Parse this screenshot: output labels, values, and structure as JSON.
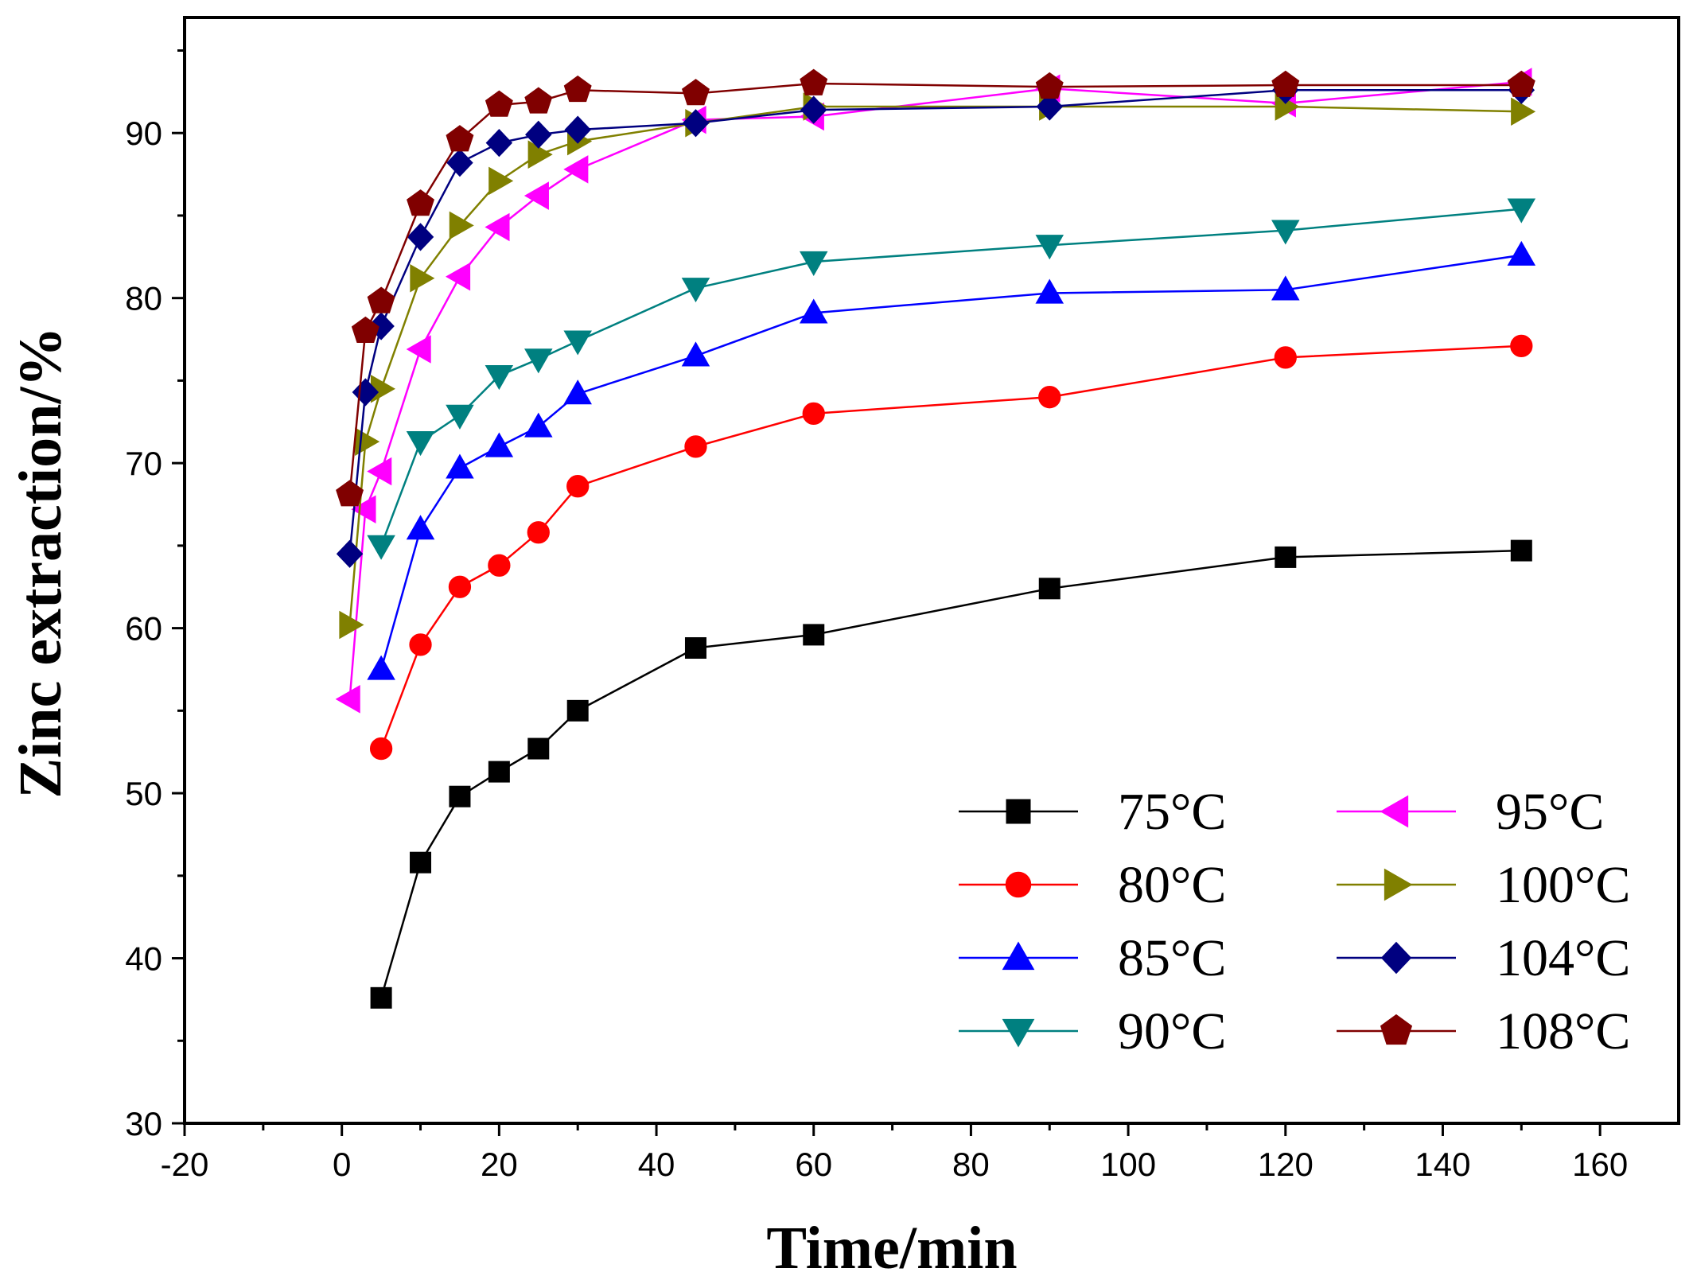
{
  "chart_data": {
    "type": "line",
    "title": "",
    "xlabel": "Time/min",
    "ylabel": "Zinc extraction/%",
    "xlim": [
      -20,
      170
    ],
    "ylim": [
      30,
      97
    ],
    "xticks": [
      -20,
      0,
      20,
      40,
      60,
      80,
      100,
      120,
      140,
      160
    ],
    "yticks": [
      30,
      40,
      50,
      60,
      70,
      80,
      90
    ],
    "xtick_labels": [
      "-20",
      "0",
      "20",
      "40",
      "60",
      "80",
      "100",
      "120",
      "140",
      "160"
    ],
    "ytick_labels": [
      "30",
      "40",
      "50",
      "60",
      "70",
      "80",
      "90"
    ],
    "grid": false,
    "legend_position": "bottom-right",
    "series": [
      {
        "name": "75°C",
        "color": "#000000",
        "marker": "square",
        "x": [
          5,
          10,
          15,
          20,
          25,
          30,
          45,
          60,
          90,
          120,
          150
        ],
        "y": [
          37.6,
          45.8,
          49.8,
          51.3,
          52.7,
          55.0,
          58.8,
          59.6,
          62.4,
          64.3,
          64.7
        ]
      },
      {
        "name": "80°C",
        "color": "#ff0000",
        "marker": "circle",
        "x": [
          5,
          10,
          15,
          20,
          25,
          30,
          45,
          60,
          90,
          120,
          150
        ],
        "y": [
          52.7,
          59.0,
          62.5,
          63.8,
          65.8,
          68.6,
          71.0,
          73.0,
          74.0,
          76.4,
          77.1
        ]
      },
      {
        "name": "85°C",
        "color": "#0000ff",
        "marker": "triangle-up",
        "x": [
          5,
          10,
          15,
          20,
          25,
          30,
          45,
          60,
          90,
          120,
          150
        ],
        "y": [
          57.5,
          66.0,
          69.7,
          71.0,
          72.2,
          74.2,
          76.5,
          79.1,
          80.3,
          80.5,
          82.6
        ]
      },
      {
        "name": "90°C",
        "color": "#008080",
        "marker": "triangle-down",
        "x": [
          5,
          10,
          15,
          20,
          25,
          30,
          45,
          60,
          90,
          120,
          150
        ],
        "y": [
          65.0,
          71.3,
          72.9,
          75.3,
          76.3,
          77.4,
          80.6,
          82.2,
          83.2,
          84.1,
          85.4
        ]
      },
      {
        "name": "95°C",
        "color": "#ff00ff",
        "marker": "triangle-left",
        "x": [
          1,
          3,
          5,
          10,
          15,
          20,
          25,
          30,
          45,
          60,
          90,
          120,
          150
        ],
        "y": [
          55.7,
          67.2,
          69.5,
          76.9,
          81.3,
          84.3,
          86.2,
          87.8,
          90.8,
          91.0,
          92.7,
          91.8,
          93.1
        ]
      },
      {
        "name": "100°C",
        "color": "#808000",
        "marker": "triangle-right",
        "x": [
          1,
          3,
          5,
          10,
          15,
          20,
          25,
          30,
          45,
          60,
          90,
          120,
          150
        ],
        "y": [
          60.2,
          71.3,
          74.5,
          81.2,
          84.4,
          87.1,
          88.7,
          89.5,
          90.6,
          91.6,
          91.6,
          91.6,
          91.3
        ]
      },
      {
        "name": "104°C",
        "color": "#000080",
        "marker": "diamond",
        "x": [
          1,
          3,
          5,
          10,
          15,
          20,
          25,
          30,
          45,
          60,
          90,
          120,
          150
        ],
        "y": [
          64.5,
          74.3,
          78.3,
          83.7,
          88.2,
          89.4,
          89.9,
          90.2,
          90.6,
          91.4,
          91.6,
          92.6,
          92.6
        ]
      },
      {
        "name": "108°C",
        "color": "#800000",
        "marker": "pentagon",
        "x": [
          1,
          3,
          5,
          10,
          15,
          20,
          25,
          30,
          45,
          60,
          90,
          120,
          150
        ],
        "y": [
          68.1,
          78.0,
          79.8,
          85.7,
          89.6,
          91.7,
          91.9,
          92.6,
          92.4,
          93.0,
          92.8,
          92.9,
          92.9
        ]
      }
    ]
  }
}
